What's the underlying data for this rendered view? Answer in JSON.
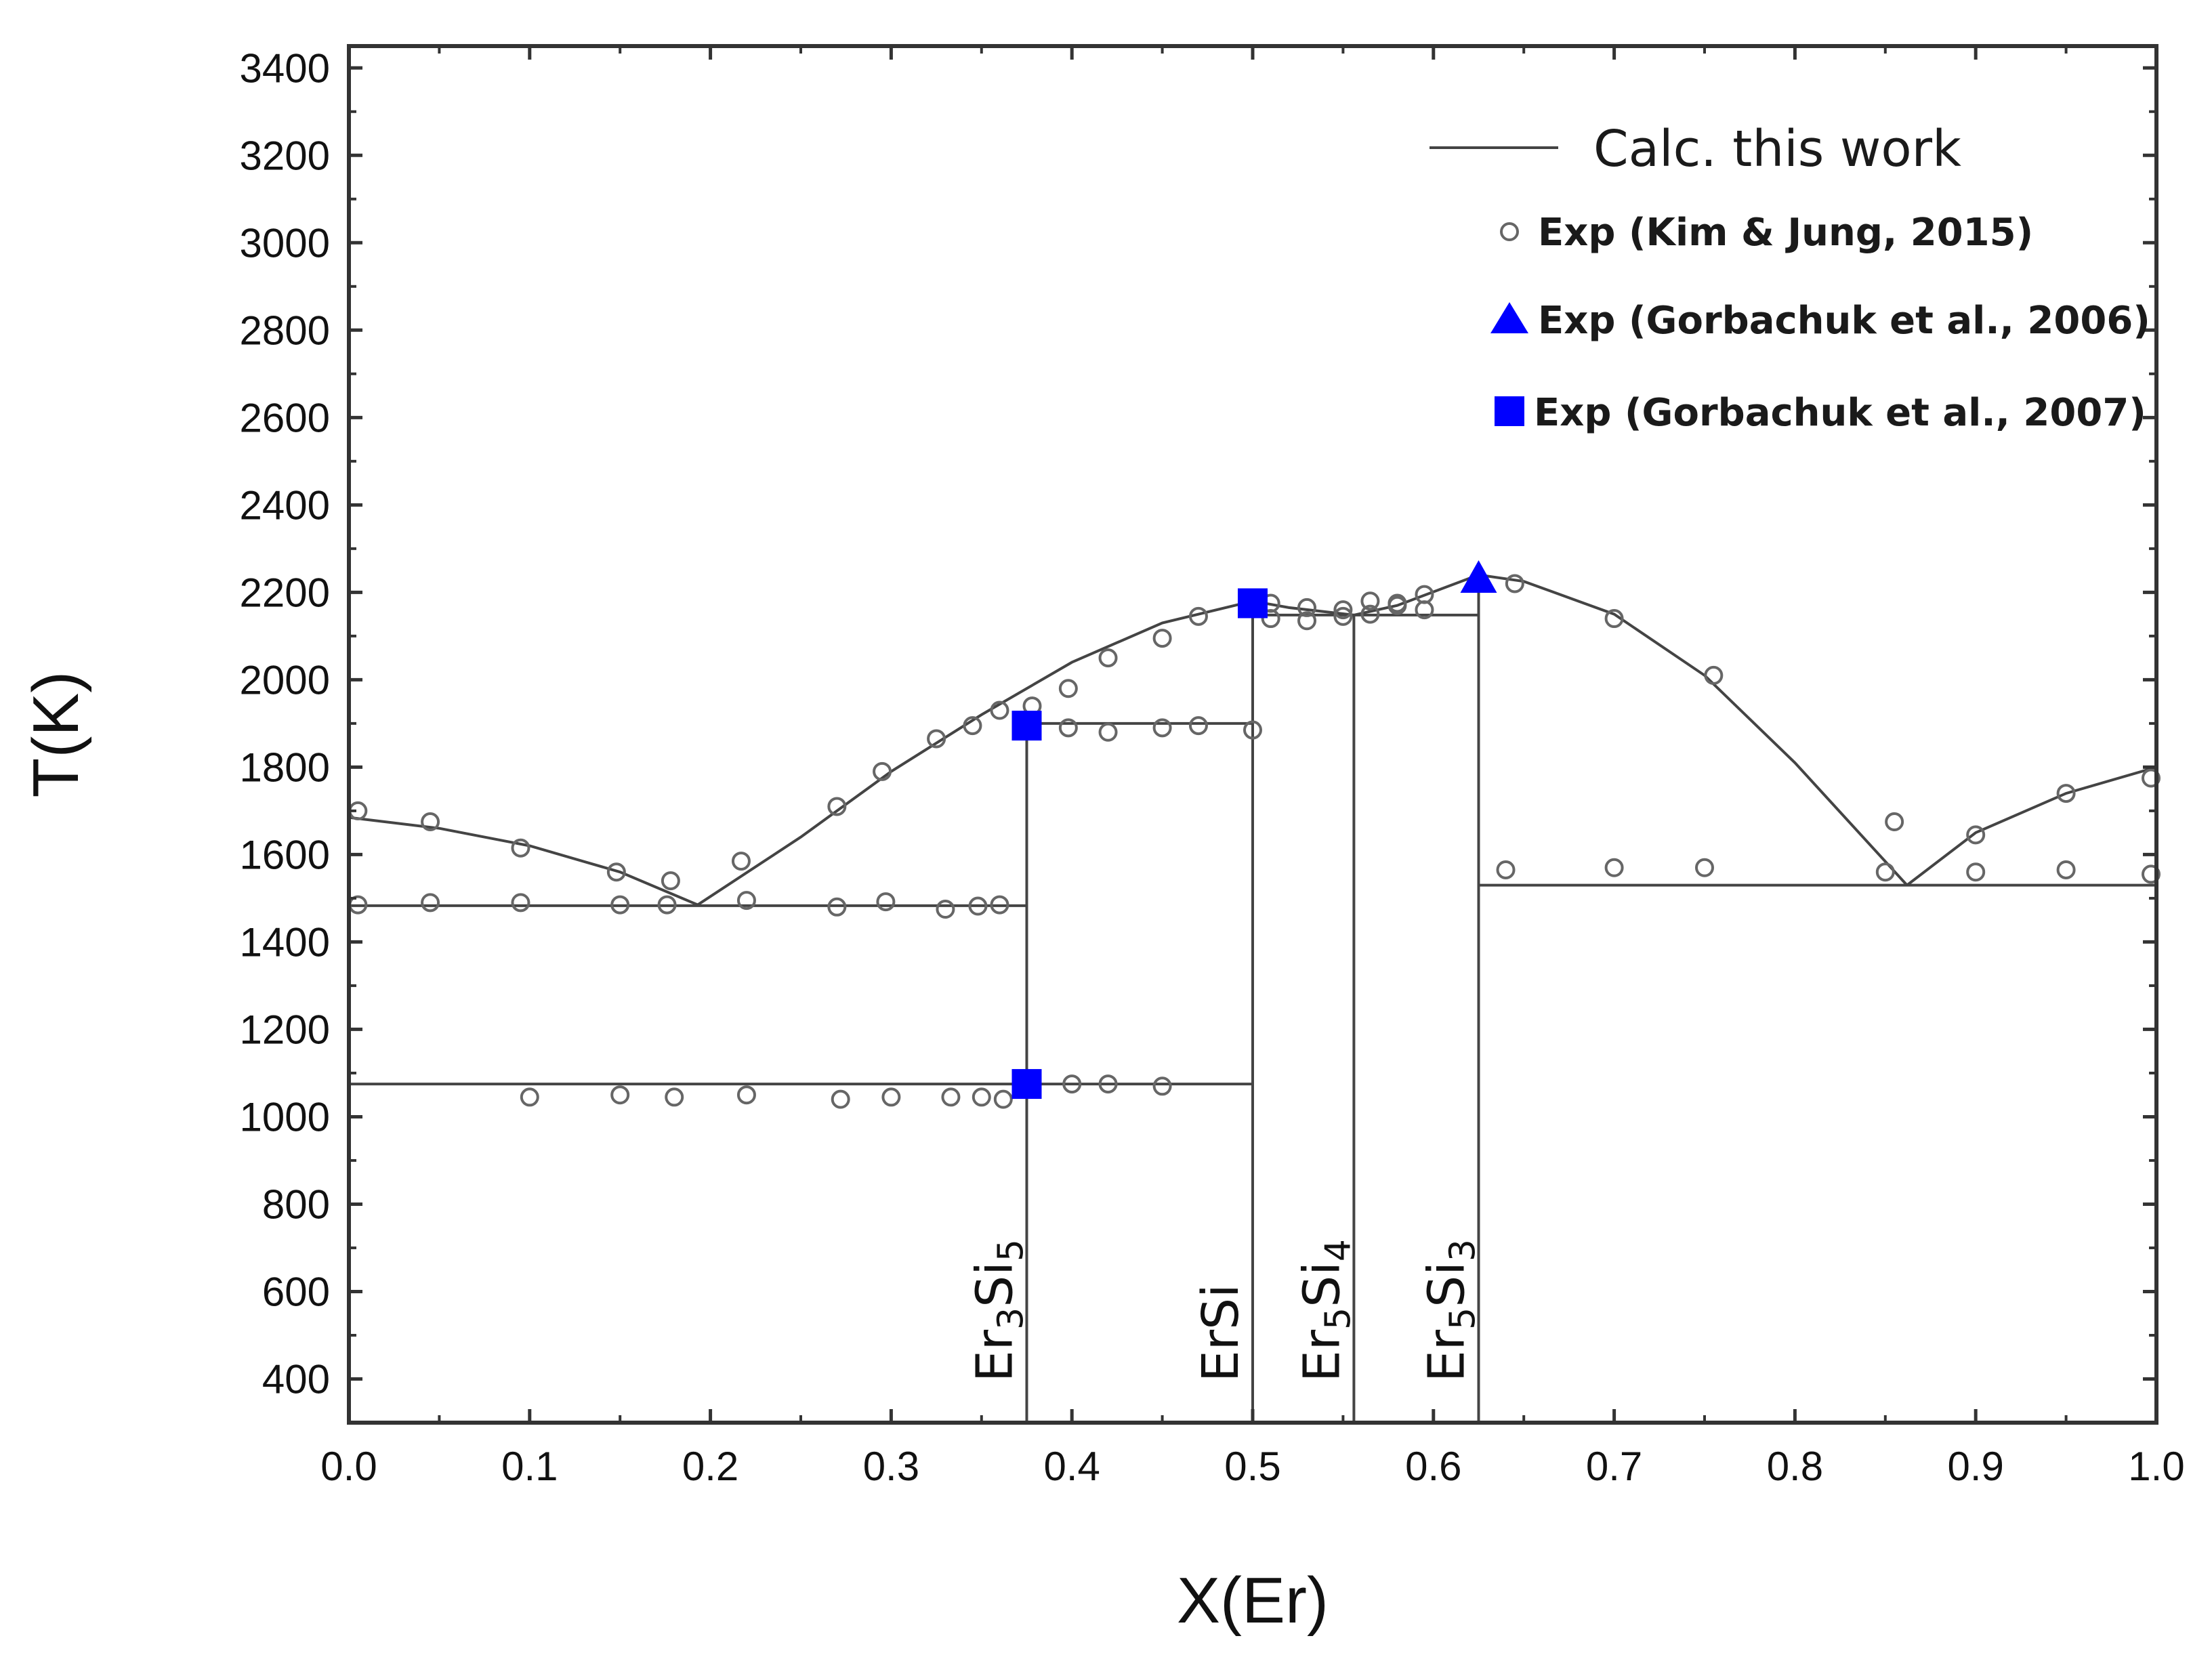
{
  "chart_data": {
    "type": "scatter",
    "title": "",
    "xlabel": "X(Er)",
    "ylabel": "T(K)",
    "xlim": [
      0.0,
      1.0
    ],
    "ylim": [
      300,
      3450
    ],
    "xticks": [
      0.0,
      0.1,
      0.2,
      0.3,
      0.4,
      0.5,
      0.6,
      0.7,
      0.8,
      0.9,
      1.0
    ],
    "xtick_labels": [
      "0.0",
      "0.1",
      "0.2",
      "0.3",
      "0.4",
      "0.5",
      "0.6",
      "0.7",
      "0.8",
      "0.9",
      "1.0"
    ],
    "yticks": [
      400,
      600,
      800,
      1000,
      1200,
      1400,
      1600,
      1800,
      2000,
      2200,
      2400,
      2600,
      2800,
      3000,
      3200,
      3400
    ],
    "ytick_labels": [
      "400",
      "600",
      "800",
      "1000",
      "1200",
      "1400",
      "1600",
      "1800",
      "2000",
      "2200",
      "2400",
      "2600",
      "2800",
      "3000",
      "3200",
      "3400"
    ],
    "grid": false,
    "legend_position": "top-right",
    "legend": [
      {
        "label": "Calc. this work",
        "marker": "line",
        "color": "#333333"
      },
      {
        "label": "Exp (Kim & Jung, 2015)",
        "marker": "open-circle",
        "color": "#555555"
      },
      {
        "label": "Exp (Gorbachuk et al., 2006)",
        "marker": "triangle",
        "color": "#0000ff"
      },
      {
        "label": "Exp (Gorbachuk et al., 2007)",
        "marker": "square",
        "color": "#0000ff"
      }
    ],
    "phases": [
      {
        "label_main": "Er",
        "sub1": "3",
        "mid": "Si",
        "sub2": "5",
        "x": 0.375
      },
      {
        "label_main": "ErSi",
        "sub1": "",
        "mid": "",
        "sub2": "",
        "x": 0.5
      },
      {
        "label_main": "Er",
        "sub1": "5",
        "mid": "Si",
        "sub2": "4",
        "x": 0.556
      },
      {
        "label_main": "Er",
        "sub1": "5",
        "mid": "Si",
        "sub2": "3",
        "x": 0.625
      }
    ],
    "calc_curves": [
      {
        "name": "liquidus-si-rich",
        "points": [
          [
            0.0,
            1685
          ],
          [
            0.05,
            1660
          ],
          [
            0.1,
            1620
          ],
          [
            0.15,
            1560
          ],
          [
            0.193,
            1485
          ]
        ]
      },
      {
        "name": "liquidus-er3si5-ersi",
        "points": [
          [
            0.193,
            1485
          ],
          [
            0.25,
            1640
          ],
          [
            0.3,
            1790
          ],
          [
            0.35,
            1920
          ],
          [
            0.4,
            2040
          ],
          [
            0.45,
            2130
          ],
          [
            0.5,
            2180
          ]
        ]
      },
      {
        "name": "liquidus-ersi-er5si4",
        "points": [
          [
            0.5,
            2180
          ],
          [
            0.52,
            2165
          ],
          [
            0.556,
            2148
          ],
          [
            0.58,
            2170
          ],
          [
            0.625,
            2240
          ],
          [
            0.65,
            2225
          ],
          [
            0.7,
            2150
          ],
          [
            0.75,
            2010
          ],
          [
            0.8,
            1810
          ],
          [
            0.862,
            1530
          ]
        ]
      },
      {
        "name": "liquidus-er-rich",
        "points": [
          [
            0.862,
            1530
          ],
          [
            0.9,
            1650
          ],
          [
            0.95,
            1740
          ],
          [
            1.0,
            1800
          ]
        ]
      },
      {
        "name": "eutectic-1480",
        "points": [
          [
            0.0,
            1483
          ],
          [
            0.375,
            1483
          ]
        ]
      },
      {
        "name": "eutectoid-1075",
        "points": [
          [
            0.0,
            1075
          ],
          [
            0.5,
            1075
          ]
        ]
      },
      {
        "name": "peritectic-1900",
        "points": [
          [
            0.375,
            1900
          ],
          [
            0.5,
            1900
          ]
        ]
      },
      {
        "name": "peritectic-2148",
        "points": [
          [
            0.5,
            2148
          ],
          [
            0.625,
            2148
          ]
        ]
      },
      {
        "name": "eutectic-1530",
        "points": [
          [
            0.625,
            1530
          ],
          [
            1.0,
            1530
          ]
        ]
      },
      {
        "name": "line-er3si5",
        "points": [
          [
            0.375,
            300
          ],
          [
            0.375,
            1900
          ]
        ]
      },
      {
        "name": "line-ersi",
        "points": [
          [
            0.5,
            300
          ],
          [
            0.5,
            2180
          ]
        ]
      },
      {
        "name": "line-er5si4",
        "points": [
          [
            0.556,
            300
          ],
          [
            0.556,
            2148
          ]
        ]
      },
      {
        "name": "line-er5si3",
        "points": [
          [
            0.625,
            300
          ],
          [
            0.625,
            2240
          ]
        ]
      }
    ],
    "series_kim_jung_2015": {
      "x": [
        0.005,
        0.045,
        0.095,
        0.148,
        0.178,
        0.217,
        0.005,
        0.045,
        0.095,
        0.15,
        0.176,
        0.22,
        0.27,
        0.297,
        0.33,
        0.348,
        0.36,
        0.1,
        0.15,
        0.18,
        0.22,
        0.272,
        0.3,
        0.333,
        0.35,
        0.362,
        0.378,
        0.4,
        0.42,
        0.45,
        0.27,
        0.295,
        0.325,
        0.345,
        0.36,
        0.378,
        0.398,
        0.42,
        0.45,
        0.47,
        0.5,
        0.398,
        0.42,
        0.45,
        0.47,
        0.51,
        0.53,
        0.55,
        0.565,
        0.58,
        0.595,
        0.51,
        0.53,
        0.55,
        0.565,
        0.58,
        0.595,
        0.645,
        0.7,
        0.755,
        0.855,
        0.9,
        0.95,
        0.997,
        0.64,
        0.7,
        0.75,
        0.85,
        0.9,
        0.95,
        0.997
      ],
      "y": [
        1700,
        1675,
        1615,
        1560,
        1540,
        1585,
        1485,
        1490,
        1490,
        1485,
        1485,
        1495,
        1480,
        1492,
        1475,
        1482,
        1485,
        1045,
        1050,
        1045,
        1050,
        1040,
        1045,
        1045,
        1045,
        1040,
        1080,
        1075,
        1075,
        1070,
        1710,
        1790,
        1865,
        1895,
        1930,
        1940,
        1980,
        2050,
        2095,
        2145,
        1885,
        1890,
        1880,
        1890,
        1895,
        2175,
        2165,
        2160,
        2180,
        2170,
        2195,
        2140,
        2135,
        2145,
        2150,
        2175,
        2160,
        2220,
        2140,
        2010,
        1675,
        1645,
        1740,
        1775,
        1565,
        1570,
        1570,
        1560,
        1560,
        1565,
        1555
      ]
    },
    "series_gorbachuk_2006": {
      "x": [
        0.625
      ],
      "y": [
        2230
      ]
    },
    "series_gorbachuk_2007": {
      "x": [
        0.375,
        0.375,
        0.5
      ],
      "y": [
        1895,
        1075,
        2175
      ]
    }
  }
}
